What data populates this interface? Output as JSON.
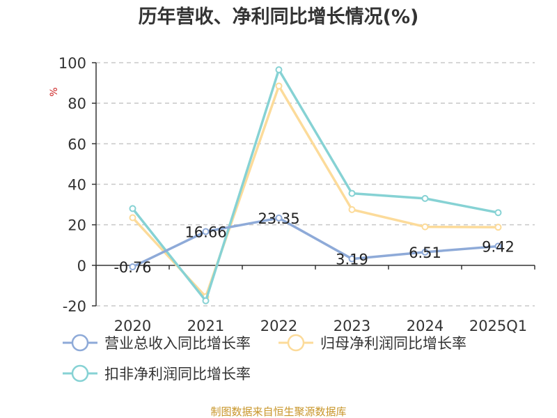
{
  "chart_data": {
    "type": "line",
    "title": "历年营收、净利同比增长情况(%)",
    "unit": "%",
    "categories": [
      "2020",
      "2021",
      "2022",
      "2023",
      "2024",
      "2025Q1"
    ],
    "ylim": [
      -20,
      100
    ],
    "yticks": [
      -20,
      0,
      20,
      40,
      60,
      80,
      100
    ],
    "grid": true,
    "legend_position": "bottom",
    "series": [
      {
        "name": "营业总收入同比增长率",
        "color": "#8eaad8",
        "values": [
          -0.76,
          16.66,
          23.35,
          3.19,
          6.51,
          9.42
        ],
        "labels": [
          "-0.76",
          "16.66",
          "23.35",
          "3.19",
          "6.51",
          "9.42"
        ]
      },
      {
        "name": "归母净利润同比增长率",
        "color": "#fcdb9a",
        "values": [
          23.5,
          -15.5,
          88.5,
          27.5,
          19.0,
          18.8
        ]
      },
      {
        "name": "扣非净利润同比增长率",
        "color": "#86d2d4",
        "values": [
          28.0,
          -17.5,
          96.5,
          35.5,
          33.0,
          26.0
        ]
      }
    ]
  },
  "source": "制图数据来自恒生聚源数据库"
}
